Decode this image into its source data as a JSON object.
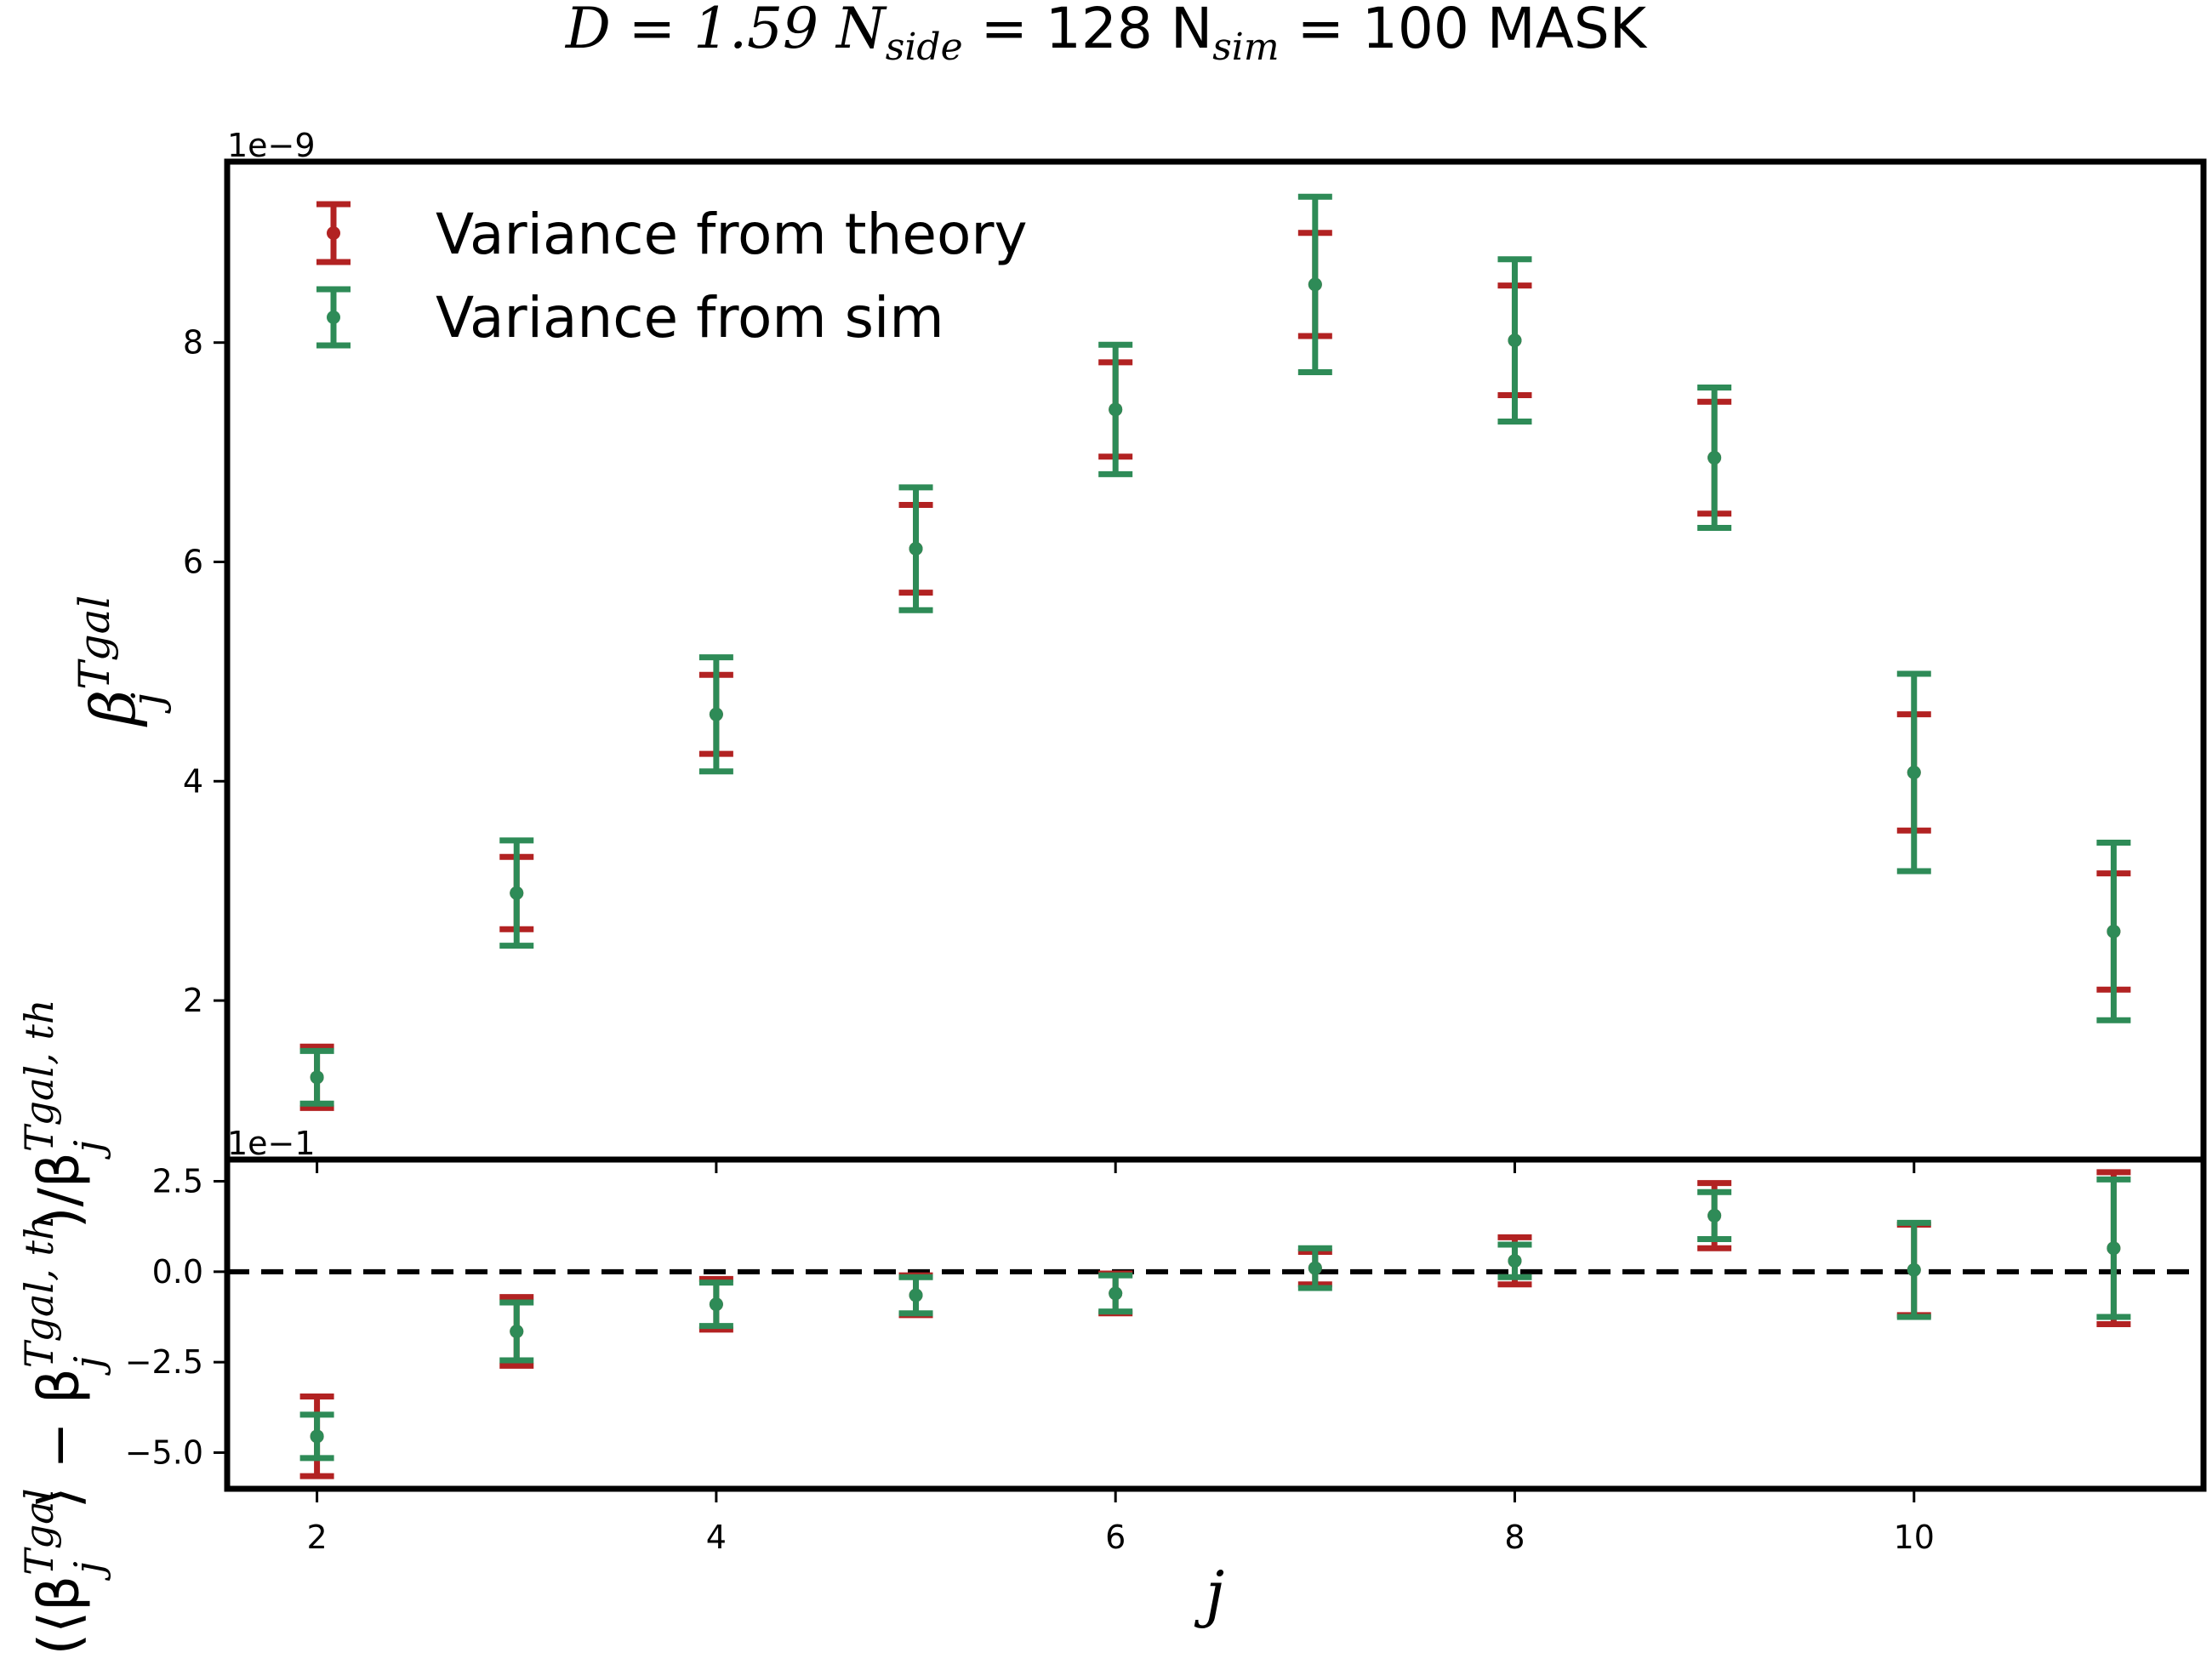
{
  "title": {
    "main": "D = 1.59 N",
    "sub1": "side",
    "mid": " = 128 N",
    "sub2": "sim",
    "tail": " = 100 MASK"
  },
  "colors": {
    "theory": "#b22222",
    "sim": "#2e8b57",
    "axis": "#000000"
  },
  "chart_data": [
    {
      "panel": "top",
      "type": "errorbar",
      "ylabel": {
        "base": "β",
        "sup": "Tgal",
        "sub": "j"
      },
      "offset_text": "1e−9",
      "x_ticks": [
        2,
        4,
        6,
        8,
        10
      ],
      "y_ticks": [
        2,
        4,
        6,
        8
      ],
      "xlim": [
        1.55,
        11.45
      ],
      "ylim": [
        0.55,
        9.65
      ],
      "x": [
        2,
        3,
        4,
        5,
        6,
        7,
        8,
        9,
        10,
        11
      ],
      "center": [
        1.3,
        2.98,
        4.61,
        6.12,
        7.39,
        8.53,
        8.02,
        6.95,
        4.08,
        2.63
      ],
      "series": [
        {
          "name": "Variance from theory",
          "color": "#b22222",
          "half_width": [
            0.28,
            0.33,
            0.36,
            0.4,
            0.43,
            0.47,
            0.5,
            0.51,
            0.53,
            0.53
          ]
        },
        {
          "name": "Variance from sim",
          "color": "#2e8b57",
          "half_width": [
            0.24,
            0.48,
            0.52,
            0.56,
            0.59,
            0.8,
            0.74,
            0.64,
            0.9,
            0.81
          ]
        }
      ],
      "legend_position": "upper-left"
    },
    {
      "panel": "bottom",
      "type": "errorbar",
      "ylabel": {
        "p1": "(⟨β",
        "p1_sup": "Tgal",
        "p1_sub": "j",
        "p2": "⟩ − β",
        "p2_sup": "Tgal, th",
        "p2_sub": "j",
        "p3": ")/β",
        "p3_sup": "Tgal, th",
        "p3_sub": "j"
      },
      "xlabel": "j",
      "offset_text": "1e−1",
      "x_ticks": [
        2,
        4,
        6,
        8,
        10
      ],
      "y_ticks": [
        2.5,
        0.0,
        -2.5,
        -5.0
      ],
      "y_tick_labels": [
        "2.5",
        "0.0",
        "−2.5",
        "−5.0"
      ],
      "xlim": [
        1.55,
        11.45
      ],
      "ylim": [
        -6.0,
        3.1
      ],
      "reference_line": 0.0,
      "x": [
        2,
        3,
        4,
        5,
        6,
        7,
        8,
        9,
        10,
        11
      ],
      "center": [
        -4.55,
        -1.65,
        -0.9,
        -0.65,
        -0.6,
        0.1,
        0.3,
        1.55,
        0.05,
        0.65
      ],
      "series": [
        {
          "name": "Variance from theory",
          "color": "#b22222",
          "half_width": [
            1.1,
            0.95,
            0.7,
            0.55,
            0.55,
            0.45,
            0.65,
            0.9,
            1.25,
            2.1
          ]
        },
        {
          "name": "Variance from sim",
          "color": "#2e8b57",
          "half_width": [
            0.6,
            0.8,
            0.6,
            0.5,
            0.5,
            0.55,
            0.45,
            0.65,
            1.3,
            1.9
          ]
        }
      ]
    }
  ]
}
